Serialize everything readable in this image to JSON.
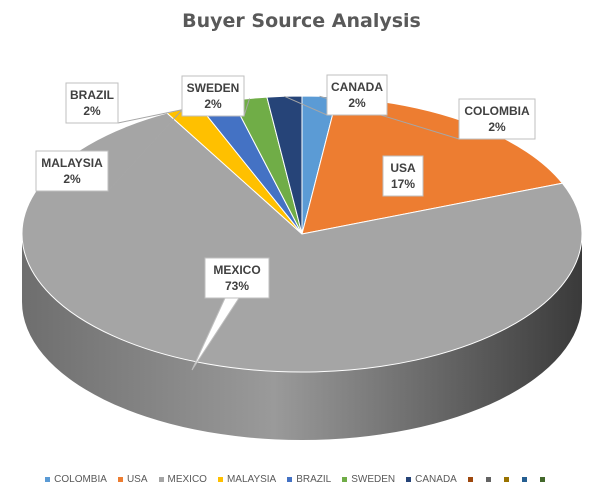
{
  "chart_data": {
    "type": "pie",
    "title": "Buyer Source Analysis",
    "slices": [
      {
        "label": "COLOMBIA",
        "value": 2,
        "percent_label": "2%",
        "color": "#5B9BD5"
      },
      {
        "label": "USA",
        "value": 17,
        "percent_label": "17%",
        "color": "#ED7D31"
      },
      {
        "label": "MEXICO",
        "value": 73,
        "percent_label": "73%",
        "color": "#A5A5A5"
      },
      {
        "label": "MALAYSIA",
        "value": 2,
        "percent_label": "2%",
        "color": "#FFC000"
      },
      {
        "label": "BRAZIL",
        "value": 2,
        "percent_label": "2%",
        "color": "#4472C4"
      },
      {
        "label": "SWEDEN",
        "value": 2,
        "percent_label": "2%",
        "color": "#70AD47"
      },
      {
        "label": "CANADA",
        "value": 2,
        "percent_label": "2%",
        "color": "#264478"
      }
    ],
    "legend": {
      "placement": "bottom",
      "entries": [
        "COLOMBIA",
        "USA",
        "MEXICO",
        "MALAYSIA",
        "BRAZIL",
        "SWEDEN",
        "CANADA"
      ],
      "empty_swatch_colors": [
        "#9E480E",
        "#636363",
        "#997300",
        "#255E91",
        "#43682B"
      ]
    },
    "style": "3d-pie"
  }
}
